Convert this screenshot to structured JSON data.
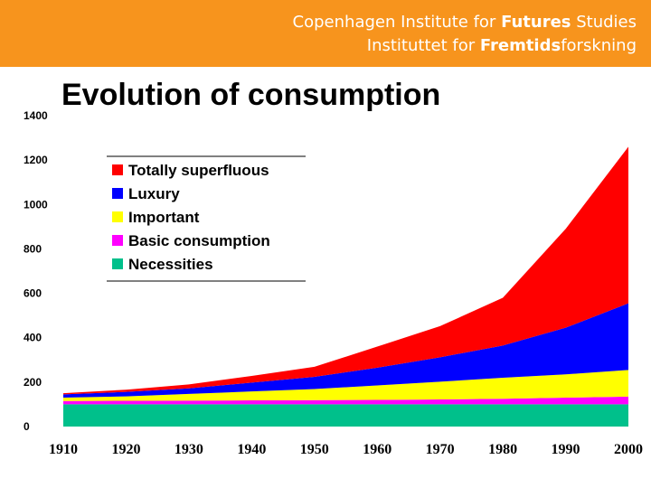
{
  "header": {
    "line1_regular": "Copenhagen Institute for ",
    "line1_bold": "Futures",
    "line1_end": " Studies",
    "line2_regular": "Instituttet for ",
    "line2_bold": "Fremtids",
    "line2_end": "forskning",
    "background_color": "#f7941d"
  },
  "chart_data": {
    "type": "area",
    "stacked": true,
    "title": "Evolution of consumption",
    "xlabel": "",
    "ylabel": "",
    "x": [
      1910,
      1920,
      1930,
      1940,
      1950,
      1960,
      1970,
      1980,
      1990,
      2000
    ],
    "xlim": [
      1910,
      2000
    ],
    "ylim": [
      0,
      1400
    ],
    "yticks": [
      0,
      200,
      400,
      600,
      800,
      1000,
      1200,
      1400
    ],
    "grid": false,
    "legend_position": "top-left",
    "series": [
      {
        "name": "Necessities",
        "color": "#00c08b",
        "values": [
          100,
          100,
          100,
          100,
          100,
          100,
          100,
          100,
          100,
          100
        ]
      },
      {
        "name": "Basic consumption",
        "color": "#ff00ff",
        "values": [
          15,
          16,
          17,
          18,
          19,
          20,
          22,
          25,
          30,
          35
        ]
      },
      {
        "name": "Important",
        "color": "#ffff00",
        "values": [
          15,
          20,
          30,
          40,
          50,
          65,
          80,
          95,
          105,
          120
        ]
      },
      {
        "name": "Luxury",
        "color": "#0000ff",
        "values": [
          15,
          20,
          25,
          40,
          55,
          80,
          110,
          145,
          210,
          300
        ]
      },
      {
        "name": "Totally superfluous",
        "color": "#ff0000",
        "values": [
          5,
          10,
          18,
          30,
          45,
          95,
          140,
          215,
          445,
          705
        ]
      }
    ],
    "legend_order": [
      "Totally superfluous",
      "Luxury",
      "Important",
      "Basic consumption",
      "Necessities"
    ]
  }
}
